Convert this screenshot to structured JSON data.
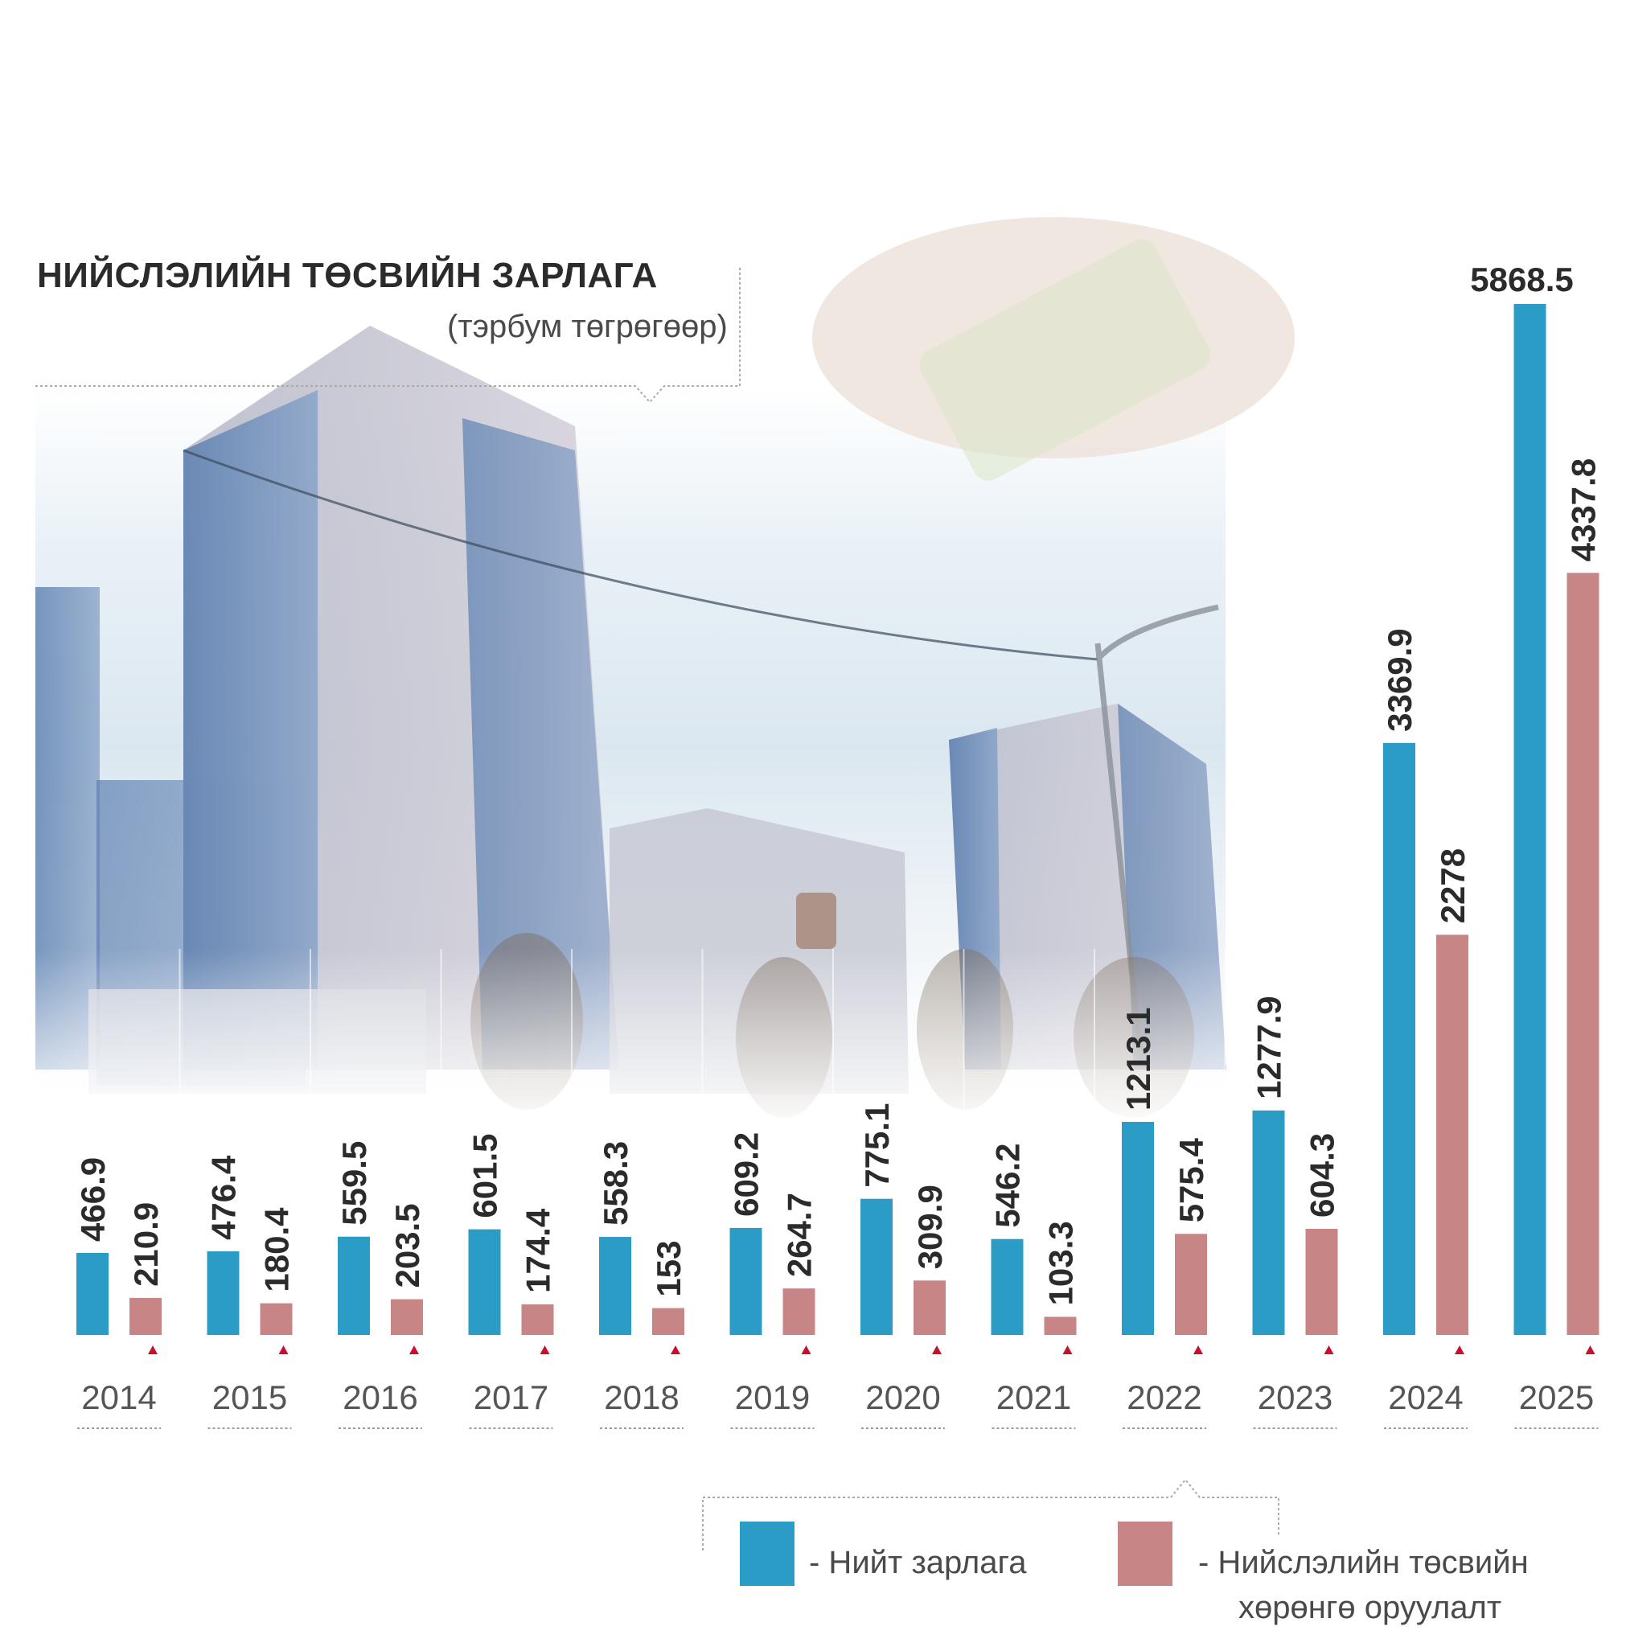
{
  "title": "НИЙСЛЭЛИЙН ТӨСВИЙН ЗАРЛАГА",
  "subtitle": "(тэрбум төгрөгөөр)",
  "colors": {
    "total": "#2b9cc6",
    "investment": "#c78585",
    "marker": "#c8102e"
  },
  "legend": {
    "total": "- Нийт зарлага",
    "investment_line1": "- Нийслэлийн төсвийн",
    "investment_line2": "хөрөнгө оруулалт"
  },
  "chart_data": {
    "type": "bar",
    "categories": [
      "2014",
      "2015",
      "2016",
      "2017",
      "2018",
      "2019",
      "2020",
      "2021",
      "2022",
      "2023",
      "2024",
      "2025"
    ],
    "series": [
      {
        "name": "Нийт зарлага",
        "values": [
          466.9,
          476.4,
          559.5,
          601.5,
          558.3,
          609.2,
          775.1,
          546.2,
          1213.1,
          1277.9,
          3369.9,
          5868.5
        ],
        "labels": [
          "466.9",
          "476.4",
          "559.5",
          "601.5",
          "558.3",
          "609.2",
          "775.1",
          "546.2",
          "1213.1",
          "1277.9",
          "3369.9",
          "5868.5"
        ]
      },
      {
        "name": "Нийслэлийн төсвийн хөрөнгө оруулалт",
        "values": [
          210.9,
          180.4,
          203.5,
          174.4,
          153,
          264.7,
          309.9,
          103.3,
          575.4,
          604.3,
          2278,
          4337.8
        ],
        "labels": [
          "210.9",
          "180.4",
          "203.5",
          "174.4",
          "153",
          "264.7",
          "309.9",
          "103.3",
          "575.4",
          "604.3",
          "2278",
          "4337.8"
        ]
      }
    ]
  }
}
